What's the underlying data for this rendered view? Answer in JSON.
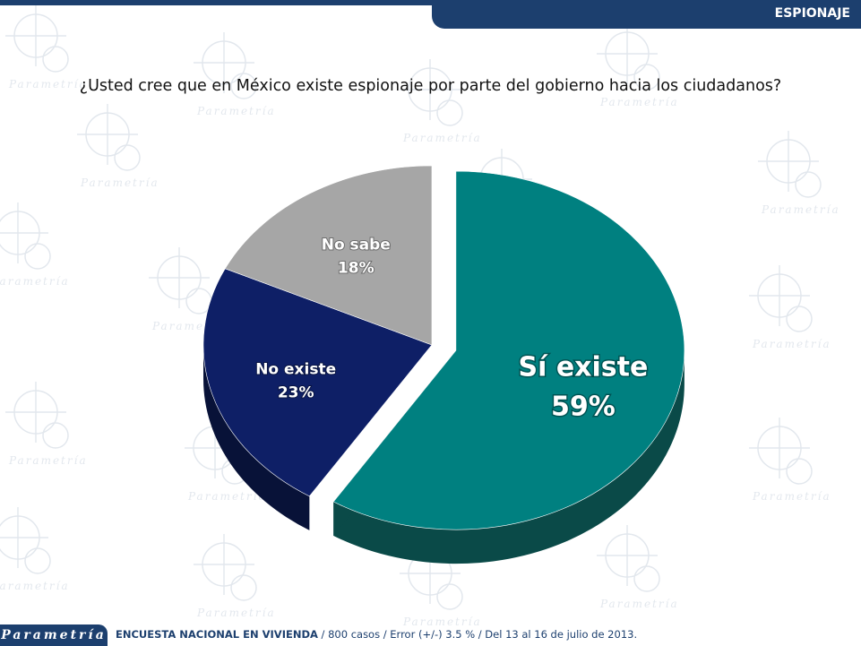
{
  "header": {
    "tab_label": "ESPIONAJE"
  },
  "question": "¿Usted cree que en México existe espionaje por parte del gobierno hacia los ciudadanos?",
  "watermark": {
    "text": "Parametría"
  },
  "footer": {
    "brand": "Parametría",
    "survey_name": "ENCUESTA NACIONAL EN VIVIENDA",
    "survey_details": " / 800 casos / Error (+/-) 3.5 % / Del 13 al 16 de julio de 2013."
  },
  "chart_data": {
    "type": "pie",
    "title": "",
    "slices": [
      {
        "label": "Sí existe",
        "value": 59,
        "display": "59%",
        "color": "#008080",
        "side_color": "#0a4a48",
        "label_color": "#ffffff"
      },
      {
        "label": "No existe",
        "value": 23,
        "display": "23%",
        "color": "#0e1f66",
        "side_color": "#081238",
        "label_color": "#ffffff"
      },
      {
        "label": "No sabe",
        "value": 18,
        "display": "18%",
        "color": "#a6a6a6",
        "side_color": "#6e6e6e",
        "label_color": "#ffffff"
      }
    ],
    "exploded_slice": "Sí existe",
    "style": "3d"
  }
}
